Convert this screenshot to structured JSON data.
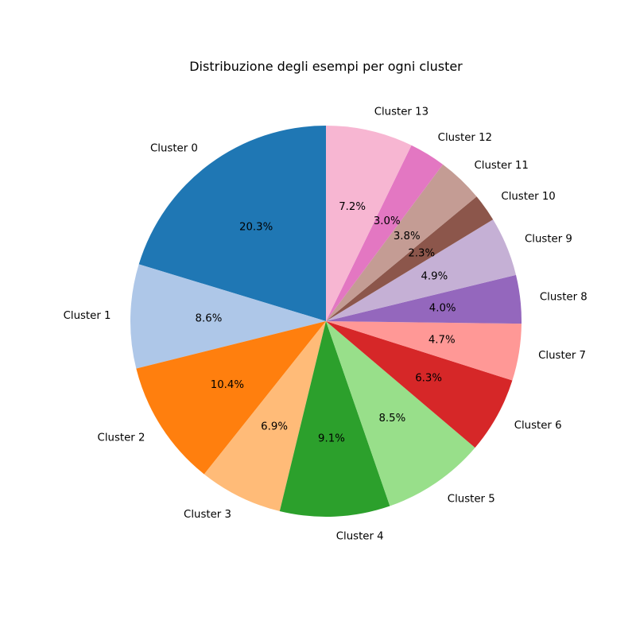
{
  "chart_data": {
    "type": "pie",
    "title": "Distribuzione degli esempi per ogni cluster",
    "start_angle_deg": 90,
    "direction": "counterclockwise",
    "legend": "none",
    "slices": [
      {
        "label": "Cluster 0",
        "value": 20.3,
        "pct_label": "20.3%",
        "color": "#1f77b4"
      },
      {
        "label": "Cluster 1",
        "value": 8.6,
        "pct_label": "8.6%",
        "color": "#aec7e8"
      },
      {
        "label": "Cluster 2",
        "value": 10.4,
        "pct_label": "10.4%",
        "color": "#ff7f0e"
      },
      {
        "label": "Cluster 3",
        "value": 6.9,
        "pct_label": "6.9%",
        "color": "#ffbb78"
      },
      {
        "label": "Cluster 4",
        "value": 9.1,
        "pct_label": "9.1%",
        "color": "#2ca02c"
      },
      {
        "label": "Cluster 5",
        "value": 8.5,
        "pct_label": "8.5%",
        "color": "#98df8a"
      },
      {
        "label": "Cluster 6",
        "value": 6.3,
        "pct_label": "6.3%",
        "color": "#d62728"
      },
      {
        "label": "Cluster 7",
        "value": 4.7,
        "pct_label": "4.7%",
        "color": "#ff9896"
      },
      {
        "label": "Cluster 8",
        "value": 4.0,
        "pct_label": "4.0%",
        "color": "#9467bd"
      },
      {
        "label": "Cluster 9",
        "value": 4.9,
        "pct_label": "4.9%",
        "color": "#c5b0d5"
      },
      {
        "label": "Cluster 10",
        "value": 2.3,
        "pct_label": "2.3%",
        "color": "#8c564b"
      },
      {
        "label": "Cluster 11",
        "value": 3.8,
        "pct_label": "3.8%",
        "color": "#c49c94"
      },
      {
        "label": "Cluster 12",
        "value": 3.0,
        "pct_label": "3.0%",
        "color": "#e377c2"
      },
      {
        "label": "Cluster 13",
        "value": 7.2,
        "pct_label": "7.2%",
        "color": "#f7b6d2"
      }
    ]
  }
}
